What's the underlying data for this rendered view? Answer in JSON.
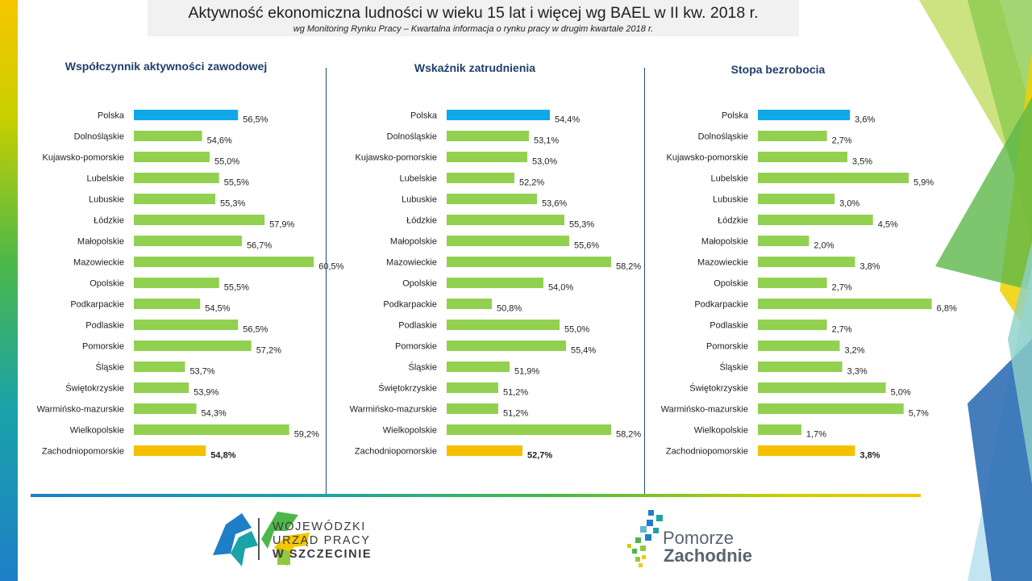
{
  "header": {
    "title": "Aktywność ekonomiczna ludności w wieku 15 lat i więcej wg BAEL w II kw. 2018 r.",
    "subtitle": "wg Monitoring Rynku Pracy – Kwartalna informacja o rynku pracy w drugim kwartale 2018 r."
  },
  "colors": {
    "highlight_national": "#11a8e8",
    "highlight_region": "#f5c000",
    "bar_default": "#92d050",
    "title_color": "#1f3f6b"
  },
  "chart_data": [
    {
      "type": "bar",
      "orientation": "horizontal",
      "title": "Współczynnik aktywności zawodowej",
      "categories": [
        "Polska",
        "Dolnośląskie",
        "Kujawsko-pomorskie",
        "Lubelskie",
        "Lubuskie",
        "Łódzkie",
        "Małopolskie",
        "Mazowieckie",
        "Opolskie",
        "Podkarpackie",
        "Podlaskie",
        "Pomorskie",
        "Śląskie",
        "Świętokrzyskie",
        "Warmińsko-mazurskie",
        "Wielkopolskie",
        "Zachodniopomorskie"
      ],
      "values": [
        56.5,
        54.6,
        55.0,
        55.5,
        55.3,
        57.9,
        56.7,
        60.5,
        55.5,
        54.5,
        56.5,
        57.2,
        53.7,
        53.9,
        54.3,
        59.2,
        54.8
      ],
      "labels": [
        "56,5%",
        "54,6%",
        "55,0%",
        "55,5%",
        "55,3%",
        "57,9%",
        "56,7%",
        "60,5%",
        "55,5%",
        "54,5%",
        "56,5%",
        "57,2%",
        "53,7%",
        "53,9%",
        "54,3%",
        "59,2%",
        "54,8%"
      ],
      "xlim": [
        51,
        61
      ]
    },
    {
      "type": "bar",
      "orientation": "horizontal",
      "title": "Wskaźnik zatrudnienia",
      "categories": [
        "Polska",
        "Dolnośląskie",
        "Kujawsko-pomorskie",
        "Lubelskie",
        "Lubuskie",
        "Łódzkie",
        "Małopolskie",
        "Mazowieckie",
        "Opolskie",
        "Podkarpackie",
        "Podlaskie",
        "Pomorskie",
        "Śląskie",
        "Świętokrzyskie",
        "Warmińsko-mazurskie",
        "Wielkopolskie",
        "Zachodniopomorskie"
      ],
      "values": [
        54.4,
        53.1,
        53.0,
        52.2,
        53.6,
        55.3,
        55.6,
        58.2,
        54.0,
        50.8,
        55.0,
        55.4,
        51.9,
        51.2,
        51.2,
        58.2,
        52.7
      ],
      "labels": [
        "54,4%",
        "53,1%",
        "53,0%",
        "52,2%",
        "53,6%",
        "55,3%",
        "55,6%",
        "58,2%",
        "54,0%",
        "50,8%",
        "55,0%",
        "55,4%",
        "51,9%",
        "51,2%",
        "51,2%",
        "58,2%",
        "52,7%"
      ],
      "xlim": [
        48,
        59
      ]
    },
    {
      "type": "bar",
      "orientation": "horizontal",
      "title": "Stopa bezrobocia",
      "categories": [
        "Polska",
        "Dolnośląskie",
        "Kujawsko-pomorskie",
        "Lubelskie",
        "Lubuskie",
        "Łódzkie",
        "Małopolskie",
        "Mazowieckie",
        "Opolskie",
        "Podkarpackie",
        "Podlaskie",
        "Pomorskie",
        "Śląskie",
        "Świętokrzyskie",
        "Warmińsko-mazurskie",
        "Wielkopolskie",
        "Zachodniopomorskie"
      ],
      "values": [
        3.6,
        2.7,
        3.5,
        5.9,
        3.0,
        4.5,
        2.0,
        3.8,
        2.7,
        6.8,
        2.7,
        3.2,
        3.3,
        5.0,
        5.7,
        1.7,
        3.8
      ],
      "labels": [
        "3,6%",
        "2,7%",
        "3,5%",
        "5,9%",
        "3,0%",
        "4,5%",
        "2,0%",
        "3,8%",
        "2,7%",
        "6,8%",
        "2,7%",
        "3,2%",
        "3,3%",
        "5,0%",
        "5,7%",
        "1,7%",
        "3,8%"
      ],
      "xlim": [
        0,
        7
      ]
    }
  ],
  "logos": {
    "wup": {
      "line1": "WOJEWÓDZKI",
      "line2": "URZĄD PRACY",
      "line3": "W SZCZECINIE"
    },
    "pz": {
      "line1": "Pomorze",
      "line2": "Zachodnie"
    }
  }
}
